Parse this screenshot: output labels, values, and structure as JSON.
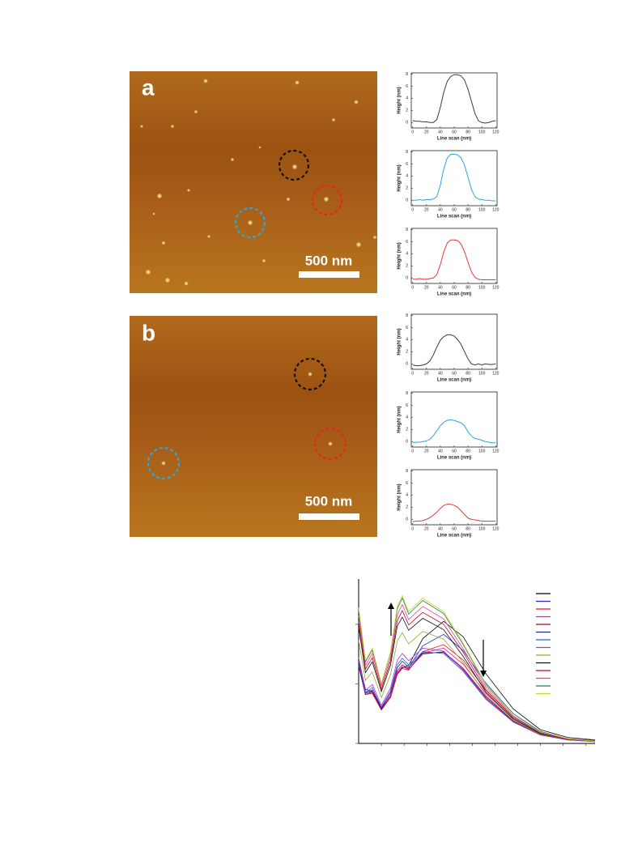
{
  "figure": {
    "panels": [
      {
        "label": "a",
        "scale_bar": "500 nm"
      },
      {
        "label": "b",
        "scale_bar": "500 nm"
      }
    ]
  },
  "chart_data": [
    {
      "type": "line",
      "xlabel": "Line scan (nm)",
      "ylabel": "Height (nm)",
      "xlim": [
        -2,
        122
      ],
      "ylim": [
        -0.9,
        8.2
      ],
      "xticks": [
        0,
        20,
        40,
        60,
        80,
        100,
        120
      ],
      "yticks": [
        0,
        2,
        4,
        6,
        8
      ],
      "x": [
        0,
        5,
        10,
        15,
        20,
        25,
        30,
        35,
        40,
        45,
        50,
        55,
        60,
        65,
        70,
        75,
        80,
        85,
        90,
        95,
        100,
        105,
        110,
        115,
        120
      ],
      "series": [
        {
          "color": "#3a3a3a",
          "values": [
            0.3,
            0.2,
            0.2,
            0.1,
            0.1,
            0.0,
            0.0,
            0.5,
            2.5,
            5.0,
            6.8,
            7.6,
            7.9,
            7.9,
            7.7,
            7.0,
            5.5,
            3.5,
            1.5,
            0.3,
            0.0,
            -0.1,
            0.0,
            0.2,
            0.3
          ]
        }
      ]
    },
    {
      "type": "line",
      "xlabel": "Line scan (nm)",
      "ylabel": "Height (nm)",
      "xlim": [
        -2,
        122
      ],
      "ylim": [
        -0.9,
        8.2
      ],
      "xticks": [
        0,
        20,
        40,
        60,
        80,
        100,
        120
      ],
      "yticks": [
        0,
        2,
        4,
        6,
        8
      ],
      "x": [
        0,
        5,
        10,
        15,
        20,
        25,
        30,
        35,
        40,
        45,
        50,
        55,
        60,
        65,
        70,
        75,
        80,
        85,
        90,
        95,
        100,
        105,
        110,
        115,
        120
      ],
      "series": [
        {
          "color": "#2aa8d8",
          "values": [
            0.0,
            0.0,
            0.1,
            0.0,
            0.1,
            0.1,
            0.2,
            0.6,
            2.5,
            5.2,
            7.0,
            7.6,
            7.6,
            7.5,
            7.0,
            5.8,
            3.8,
            1.8,
            0.6,
            0.2,
            0.1,
            0.0,
            0.0,
            -0.1,
            -0.1
          ]
        }
      ]
    },
    {
      "type": "line",
      "xlabel": "Line scan (nm)",
      "ylabel": "Height (nm)",
      "xlim": [
        -2,
        122
      ],
      "ylim": [
        -0.9,
        8.2
      ],
      "xticks": [
        0,
        20,
        40,
        60,
        80,
        100,
        120
      ],
      "yticks": [
        0,
        2,
        4,
        6,
        8
      ],
      "x": [
        0,
        5,
        10,
        15,
        20,
        25,
        30,
        35,
        40,
        45,
        50,
        55,
        60,
        65,
        70,
        75,
        80,
        85,
        90,
        95,
        100,
        105,
        110,
        115,
        120
      ],
      "series": [
        {
          "color": "#e8383a",
          "values": [
            -0.2,
            -0.2,
            -0.1,
            -0.2,
            -0.2,
            -0.1,
            0.0,
            0.6,
            2.2,
            4.3,
            5.8,
            6.3,
            6.3,
            6.2,
            5.6,
            4.3,
            2.6,
            1.0,
            0.1,
            -0.2,
            -0.3,
            -0.3,
            -0.3,
            -0.3,
            -0.3
          ]
        }
      ]
    },
    {
      "type": "line",
      "xlabel": "Line scan (nm)",
      "ylabel": "Height (nm)",
      "xlim": [
        -2,
        122
      ],
      "ylim": [
        -0.9,
        8.2
      ],
      "xticks": [
        0,
        20,
        40,
        60,
        80,
        100,
        120
      ],
      "yticks": [
        0,
        2,
        4,
        6,
        8
      ],
      "x": [
        0,
        5,
        10,
        15,
        20,
        25,
        30,
        35,
        40,
        45,
        50,
        55,
        60,
        65,
        70,
        75,
        80,
        85,
        90,
        95,
        100,
        105,
        110,
        115,
        120
      ],
      "series": [
        {
          "color": "#3a3a3a",
          "values": [
            -0.2,
            -0.3,
            -0.3,
            -0.2,
            0.0,
            0.5,
            1.5,
            2.8,
            3.9,
            4.5,
            4.8,
            4.8,
            4.6,
            4.0,
            3.2,
            2.0,
            0.8,
            0.0,
            -0.2,
            0.0,
            -0.2,
            0.0,
            -0.1,
            -0.1,
            0.0
          ]
        }
      ]
    },
    {
      "type": "line",
      "xlabel": "Line scan (nm)",
      "ylabel": "Height (nm)",
      "xlim": [
        -2,
        122
      ],
      "ylim": [
        -0.9,
        8.2
      ],
      "xticks": [
        0,
        20,
        40,
        60,
        80,
        100,
        120
      ],
      "yticks": [
        0,
        2,
        4,
        6,
        8
      ],
      "x": [
        0,
        5,
        10,
        15,
        20,
        25,
        30,
        35,
        40,
        45,
        50,
        55,
        60,
        65,
        70,
        75,
        80,
        85,
        90,
        95,
        100,
        105,
        110,
        115,
        120
      ],
      "series": [
        {
          "color": "#2aa8d8",
          "values": [
            -0.2,
            -0.1,
            -0.1,
            0.0,
            0.1,
            0.4,
            1.0,
            1.8,
            2.6,
            3.2,
            3.5,
            3.6,
            3.5,
            3.3,
            3.1,
            2.6,
            1.6,
            0.9,
            0.5,
            0.4,
            0.2,
            0.0,
            -0.1,
            -0.2,
            -0.2
          ]
        }
      ]
    },
    {
      "type": "line",
      "xlabel": "Line scan (nm)",
      "ylabel": "Height (nm)",
      "xlim": [
        -2,
        122
      ],
      "ylim": [
        -0.9,
        8.2
      ],
      "xticks": [
        0,
        20,
        40,
        60,
        80,
        100,
        120
      ],
      "yticks": [
        0,
        2,
        4,
        6,
        8
      ],
      "x": [
        0,
        5,
        10,
        15,
        20,
        25,
        30,
        35,
        40,
        45,
        50,
        55,
        60,
        65,
        70,
        75,
        80,
        85,
        90,
        95,
        100,
        105,
        110,
        115,
        120
      ],
      "series": [
        {
          "color": "#e8383a",
          "values": [
            -0.4,
            -0.3,
            -0.3,
            -0.2,
            0.0,
            0.3,
            0.7,
            1.2,
            1.8,
            2.3,
            2.5,
            2.5,
            2.3,
            2.0,
            1.4,
            0.8,
            0.2,
            0.0,
            -0.1,
            -0.2,
            -0.3,
            -0.3,
            -0.3,
            -0.3,
            -0.3
          ]
        }
      ]
    },
    {
      "type": "line",
      "show_tick_labels": false,
      "legend": "upper right",
      "xlim": [
        300,
        820
      ],
      "ylim": [
        0,
        2.76
      ],
      "xticks": [
        350,
        400,
        450,
        500,
        550,
        600,
        650,
        700,
        750,
        800
      ],
      "yticks": [
        0,
        1,
        2
      ],
      "x": [
        300,
        315,
        330,
        350,
        370,
        385,
        396,
        410,
        441,
        487,
        530,
        580,
        640,
        700,
        760,
        820
      ],
      "series": [
        {
          "color": "#000000",
          "values": [
            1.4,
            0.91,
            0.87,
            0.6,
            0.77,
            1.16,
            1.27,
            1.31,
            1.76,
            2.05,
            1.79,
            1.17,
            0.58,
            0.23,
            0.1,
            0.06
          ]
        },
        {
          "color": "#1f2fd0",
          "values": [
            1.35,
            0.87,
            0.86,
            0.58,
            0.78,
            1.17,
            1.28,
            1.27,
            1.64,
            1.83,
            1.56,
            1.01,
            0.5,
            0.2,
            0.08,
            0.05
          ]
        },
        {
          "color": "#e0102a",
          "values": [
            1.3,
            0.82,
            0.84,
            0.56,
            0.77,
            1.16,
            1.26,
            1.23,
            1.54,
            1.66,
            1.4,
            0.89,
            0.44,
            0.18,
            0.07,
            0.04
          ]
        },
        {
          "color": "#e0208c",
          "values": [
            1.3,
            0.82,
            0.86,
            0.57,
            0.79,
            1.19,
            1.29,
            1.24,
            1.52,
            1.6,
            1.33,
            0.84,
            0.41,
            0.16,
            0.07,
            0.04
          ]
        },
        {
          "color": "#b00030",
          "values": [
            1.31,
            0.82,
            0.87,
            0.57,
            0.81,
            1.22,
            1.32,
            1.25,
            1.5,
            1.54,
            1.26,
            0.79,
            0.38,
            0.15,
            0.06,
            0.04
          ]
        },
        {
          "color": "#1c2a8c",
          "values": [
            1.34,
            0.84,
            0.9,
            0.59,
            0.85,
            1.27,
            1.38,
            1.28,
            1.52,
            1.53,
            1.24,
            0.77,
            0.37,
            0.15,
            0.06,
            0.03
          ]
        },
        {
          "color": "#2060e0",
          "values": [
            1.38,
            0.85,
            0.94,
            0.61,
            0.88,
            1.32,
            1.43,
            1.32,
            1.54,
            1.51,
            1.21,
            0.74,
            0.36,
            0.14,
            0.06,
            0.03
          ]
        },
        {
          "color": "#c030d0",
          "values": [
            1.44,
            0.89,
            0.99,
            0.64,
            0.93,
            1.4,
            1.51,
            1.39,
            1.6,
            1.55,
            1.23,
            0.75,
            0.36,
            0.14,
            0.06,
            0.03
          ]
        },
        {
          "color": "#a0a030",
          "values": [
            1.73,
            1.06,
            1.2,
            0.77,
            1.15,
            1.72,
            1.86,
            1.67,
            1.88,
            1.75,
            1.36,
            0.81,
            0.39,
            0.15,
            0.07,
            0.03
          ]
        },
        {
          "color": "#101010",
          "values": [
            1.96,
            1.19,
            1.37,
            0.87,
            1.31,
            1.97,
            2.12,
            1.9,
            2.1,
            1.91,
            1.46,
            0.86,
            0.41,
            0.16,
            0.07,
            0.04
          ]
        },
        {
          "color": "#c00020",
          "values": [
            2.05,
            1.25,
            1.44,
            0.91,
            1.38,
            2.06,
            2.23,
            1.99,
            2.2,
            2.0,
            1.53,
            0.9,
            0.43,
            0.17,
            0.07,
            0.04
          ]
        },
        {
          "color": "#e040a0",
          "values": [
            2.15,
            1.31,
            1.51,
            0.96,
            1.44,
            2.16,
            2.33,
            2.08,
            2.3,
            2.09,
            1.59,
            0.94,
            0.44,
            0.18,
            0.08,
            0.04
          ]
        },
        {
          "color": "#208040",
          "values": [
            2.24,
            1.37,
            1.57,
            1.0,
            1.51,
            2.26,
            2.44,
            2.17,
            2.4,
            2.18,
            1.66,
            0.98,
            0.46,
            0.18,
            0.08,
            0.04
          ]
        },
        {
          "color": "#d0d020",
          "values": [
            2.28,
            1.39,
            1.6,
            1.01,
            1.53,
            2.3,
            2.48,
            2.21,
            2.44,
            2.21,
            1.68,
            0.99,
            0.47,
            0.19,
            0.08,
            0.04
          ]
        }
      ]
    }
  ]
}
